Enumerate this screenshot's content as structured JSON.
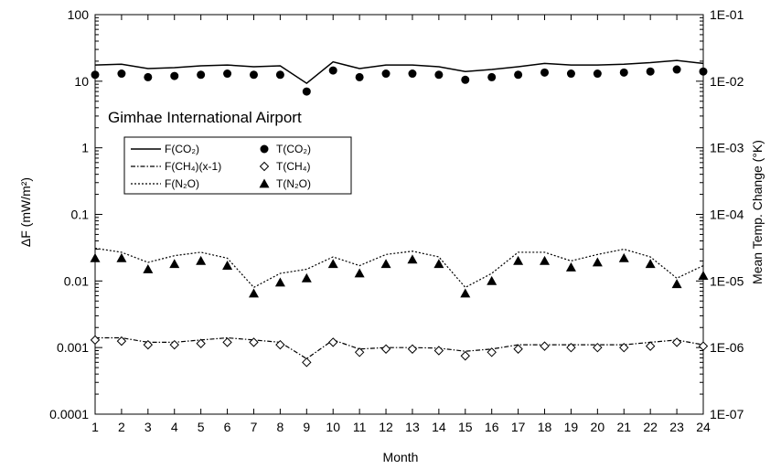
{
  "chart_data": {
    "type": "line",
    "annotation": "Gimhae International Airport",
    "xlabel": "Month",
    "ylabel_left": "ΔF (mW/m²)",
    "ylabel_right": "Mean Temp. Change (°K)",
    "x": [
      1,
      2,
      3,
      4,
      5,
      6,
      7,
      8,
      9,
      10,
      11,
      12,
      13,
      14,
      15,
      16,
      17,
      18,
      19,
      20,
      21,
      22,
      23,
      24
    ],
    "xlim": [
      1,
      24
    ],
    "yscale": "log",
    "ylim_left": [
      0.0001,
      100
    ],
    "ylim_right": [
      1e-07,
      0.1
    ],
    "left_ticks": [
      "0.0001",
      "0.001",
      "0.01",
      "0.1",
      "1",
      "10",
      "100"
    ],
    "right_ticks": [
      "1E-07",
      "1E-06",
      "1E-05",
      "1E-04",
      "1E-03",
      "1E-02",
      "1E-01"
    ],
    "legend": {
      "placement": "upper-left",
      "entries": [
        {
          "key": "F_CO2",
          "label": "F(CO₂)",
          "marker": "solid-line"
        },
        {
          "key": "T_CO2",
          "label": "T(CO₂)",
          "marker": "filled-circle"
        },
        {
          "key": "F_CH4",
          "label": "F(CH₄)(x-1)",
          "marker": "dash-dot-line"
        },
        {
          "key": "T_CH4",
          "label": "T(CH₄)",
          "marker": "open-diamond"
        },
        {
          "key": "F_N2O",
          "label": "F(N₂O)",
          "marker": "dotted-line"
        },
        {
          "key": "T_N2O",
          "label": "T(N₂O)",
          "marker": "filled-triangle"
        }
      ]
    },
    "series": [
      {
        "key": "F_CO2",
        "axis": "left",
        "style": "solid",
        "values": [
          17.5,
          18,
          15.5,
          16,
          17,
          17.5,
          16.5,
          17,
          9.3,
          19.5,
          15.5,
          17.5,
          17.5,
          16.5,
          14,
          15,
          16.5,
          18.5,
          17.5,
          17.5,
          18,
          19,
          20.5,
          18.5
        ]
      },
      {
        "key": "F_N2O",
        "axis": "left",
        "style": "dotted",
        "values": [
          0.031,
          0.027,
          0.019,
          0.024,
          0.027,
          0.022,
          0.008,
          0.013,
          0.015,
          0.023,
          0.017,
          0.025,
          0.028,
          0.023,
          0.008,
          0.013,
          0.027,
          0.027,
          0.02,
          0.025,
          0.03,
          0.023,
          0.011,
          0.017
        ]
      },
      {
        "key": "F_CH4",
        "axis": "left",
        "style": "dashdot",
        "values": [
          0.0014,
          0.0014,
          0.0012,
          0.0012,
          0.0013,
          0.0014,
          0.0013,
          0.0012,
          0.00068,
          0.0013,
          0.00095,
          0.001,
          0.001,
          0.00098,
          0.00088,
          0.00095,
          0.0011,
          0.0011,
          0.0011,
          0.0011,
          0.0011,
          0.0012,
          0.0013,
          0.0011
        ]
      },
      {
        "key": "T_CO2",
        "axis": "right",
        "marker": "filled-circle",
        "values": [
          0.0125,
          0.013,
          0.0115,
          0.012,
          0.0125,
          0.013,
          0.0125,
          0.0125,
          0.007,
          0.0145,
          0.0115,
          0.013,
          0.013,
          0.0125,
          0.0105,
          0.0115,
          0.0125,
          0.0135,
          0.013,
          0.013,
          0.0135,
          0.014,
          0.015,
          0.014
        ]
      },
      {
        "key": "T_N2O",
        "axis": "right",
        "marker": "filled-triangle",
        "values": [
          2.2e-05,
          2.2e-05,
          1.5e-05,
          1.8e-05,
          2e-05,
          1.7e-05,
          6.5e-06,
          9.5e-06,
          1.1e-05,
          1.8e-05,
          1.3e-05,
          1.8e-05,
          2.1e-05,
          1.8e-05,
          6.5e-06,
          1e-05,
          2e-05,
          2e-05,
          1.6e-05,
          1.9e-05,
          2.2e-05,
          1.8e-05,
          9e-06,
          1.2e-05
        ]
      },
      {
        "key": "T_CH4",
        "axis": "right",
        "marker": "open-diamond",
        "values": [
          1.3e-06,
          1.25e-06,
          1.1e-06,
          1.1e-06,
          1.15e-06,
          1.2e-06,
          1.2e-06,
          1.1e-06,
          6e-07,
          1.2e-06,
          8.5e-07,
          9.5e-07,
          9.5e-07,
          9e-07,
          7.5e-07,
          8.5e-07,
          9.5e-07,
          1.05e-06,
          1e-06,
          1e-06,
          1e-06,
          1.05e-06,
          1.2e-06,
          1.05e-06
        ]
      }
    ]
  }
}
